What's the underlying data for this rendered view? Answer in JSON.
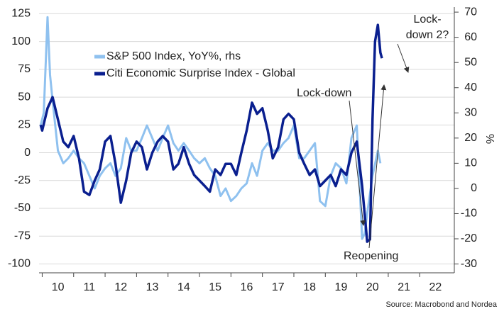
{
  "chart_data": {
    "type": "line",
    "y2label": "%",
    "source": "Source: Macrobond and Nordea",
    "annotations": [
      "Lock-down",
      "Reopening",
      "Lock-",
      "down 2?"
    ],
    "legend": "upper left",
    "grid": true,
    "xlim": [
      9.9,
      23.1
    ],
    "xticks": [
      10,
      11,
      12,
      13,
      14,
      15,
      16,
      17,
      18,
      19,
      20,
      21,
      22
    ],
    "ylim": [
      -108,
      131
    ],
    "yticks": [
      -100,
      -75,
      -50,
      -25,
      0,
      25,
      50,
      75,
      100,
      125
    ],
    "y2lim": [
      -33.5,
      72
    ],
    "y2ticks": [
      -30,
      -20,
      -10,
      0,
      10,
      20,
      30,
      40,
      50,
      60,
      70
    ],
    "series": [
      {
        "name": "S&P 500 Index, YoY%, rhs",
        "color": "#8fc1ef",
        "axis": "y2",
        "x": [
          9.95,
          10.05,
          10.17,
          10.25,
          10.33,
          10.5,
          10.67,
          10.83,
          11.0,
          11.17,
          11.33,
          11.5,
          11.67,
          11.83,
          12.0,
          12.17,
          12.33,
          12.5,
          12.67,
          12.83,
          13.0,
          13.17,
          13.33,
          13.5,
          13.67,
          13.83,
          14.0,
          14.17,
          14.33,
          14.5,
          14.67,
          14.83,
          15.0,
          15.17,
          15.33,
          15.5,
          15.67,
          15.83,
          16.0,
          16.17,
          16.33,
          16.5,
          16.67,
          16.83,
          17.0,
          17.17,
          17.33,
          17.5,
          17.67,
          17.83,
          18.0,
          18.17,
          18.33,
          18.5,
          18.67,
          18.83,
          19.0,
          19.17,
          19.33,
          19.5,
          19.67,
          19.83,
          20.0,
          20.17,
          20.25,
          20.33,
          20.5,
          20.67,
          20.75
        ],
        "values": [
          25,
          30,
          68,
          45,
          35,
          15,
          10,
          12,
          15,
          12,
          10,
          5,
          0,
          5,
          8,
          10,
          5,
          8,
          20,
          15,
          15,
          20,
          25,
          20,
          15,
          20,
          25,
          18,
          15,
          18,
          15,
          12,
          10,
          12,
          8,
          5,
          -3,
          0,
          -5,
          -3,
          0,
          2,
          10,
          5,
          15,
          18,
          15,
          15,
          18,
          20,
          25,
          12,
          12,
          15,
          18,
          -5,
          -7,
          5,
          10,
          8,
          2,
          20,
          25,
          -20,
          -18,
          -10,
          5,
          15,
          10
        ]
      },
      {
        "name": "Citi Economic Surprise Index - Global",
        "color": "#0a1f8f",
        "axis": "y",
        "x": [
          9.95,
          10.0,
          10.17,
          10.33,
          10.5,
          10.67,
          10.83,
          11.0,
          11.17,
          11.33,
          11.5,
          11.67,
          11.83,
          12.0,
          12.17,
          12.33,
          12.5,
          12.67,
          12.83,
          13.0,
          13.17,
          13.33,
          13.5,
          13.67,
          13.83,
          14.0,
          14.17,
          14.33,
          14.5,
          14.67,
          14.83,
          15.0,
          15.17,
          15.33,
          15.5,
          15.67,
          15.83,
          16.0,
          16.17,
          16.33,
          16.5,
          16.67,
          16.83,
          17.0,
          17.17,
          17.33,
          17.5,
          17.67,
          17.83,
          18.0,
          18.17,
          18.33,
          18.5,
          18.67,
          18.83,
          19.0,
          19.17,
          19.33,
          19.5,
          19.67,
          19.83,
          20.0,
          20.17,
          20.33,
          20.42,
          20.5,
          20.58,
          20.67,
          20.75,
          20.8
        ],
        "values": [
          25,
          20,
          40,
          50,
          30,
          10,
          5,
          15,
          -5,
          -35,
          -38,
          -25,
          -15,
          10,
          15,
          -10,
          -45,
          -25,
          0,
          10,
          5,
          -15,
          0,
          10,
          15,
          10,
          -15,
          -10,
          5,
          -10,
          -20,
          -25,
          -30,
          -35,
          -15,
          -20,
          -10,
          -10,
          -20,
          0,
          20,
          45,
          35,
          40,
          20,
          -5,
          5,
          30,
          35,
          30,
          0,
          -10,
          -20,
          -15,
          -30,
          -25,
          -20,
          -30,
          -15,
          -20,
          0,
          10,
          -30,
          -80,
          -78,
          30,
          100,
          115,
          90,
          85
        ]
      }
    ]
  }
}
